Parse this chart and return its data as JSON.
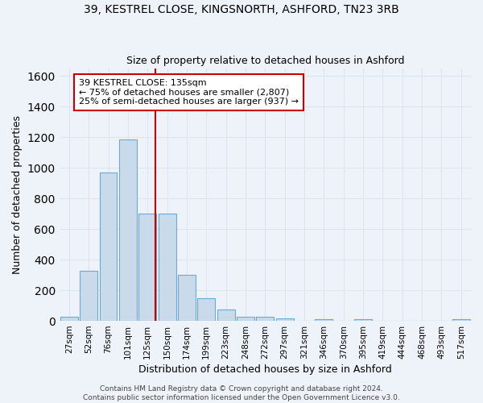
{
  "title_line1": "39, KESTREL CLOSE, KINGSNORTH, ASHFORD, TN23 3RB",
  "title_line2": "Size of property relative to detached houses in Ashford",
  "xlabel": "Distribution of detached houses by size in Ashford",
  "ylabel": "Number of detached properties",
  "categories": [
    "27sqm",
    "52sqm",
    "76sqm",
    "101sqm",
    "125sqm",
    "150sqm",
    "174sqm",
    "199sqm",
    "223sqm",
    "248sqm",
    "272sqm",
    "297sqm",
    "321sqm",
    "346sqm",
    "370sqm",
    "395sqm",
    "419sqm",
    "444sqm",
    "468sqm",
    "493sqm",
    "517sqm"
  ],
  "values": [
    25,
    325,
    970,
    1185,
    700,
    700,
    300,
    150,
    75,
    25,
    25,
    18,
    0,
    12,
    0,
    12,
    0,
    0,
    0,
    0,
    12
  ],
  "bar_color": "#c9daea",
  "bar_edge_color": "#6aaad4",
  "grid_color": "#dce6f0",
  "background_color": "#eef2f9",
  "vline_x": 4.42,
  "vline_color": "#cc0000",
  "annotation_text": "39 KESTREL CLOSE: 135sqm\n← 75% of detached houses are smaller (2,807)\n25% of semi-detached houses are larger (937) →",
  "annotation_box_color": "#ffffff",
  "annotation_box_edge": "#cc0000",
  "footnote": "Contains HM Land Registry data © Crown copyright and database right 2024.\nContains public sector information licensed under the Open Government Licence v3.0.",
  "ylim": [
    0,
    1650
  ],
  "ann_xleft": 0.08,
  "ann_ytop": 0.955,
  "figsize": [
    6.0,
    5.0
  ],
  "dpi": 100
}
